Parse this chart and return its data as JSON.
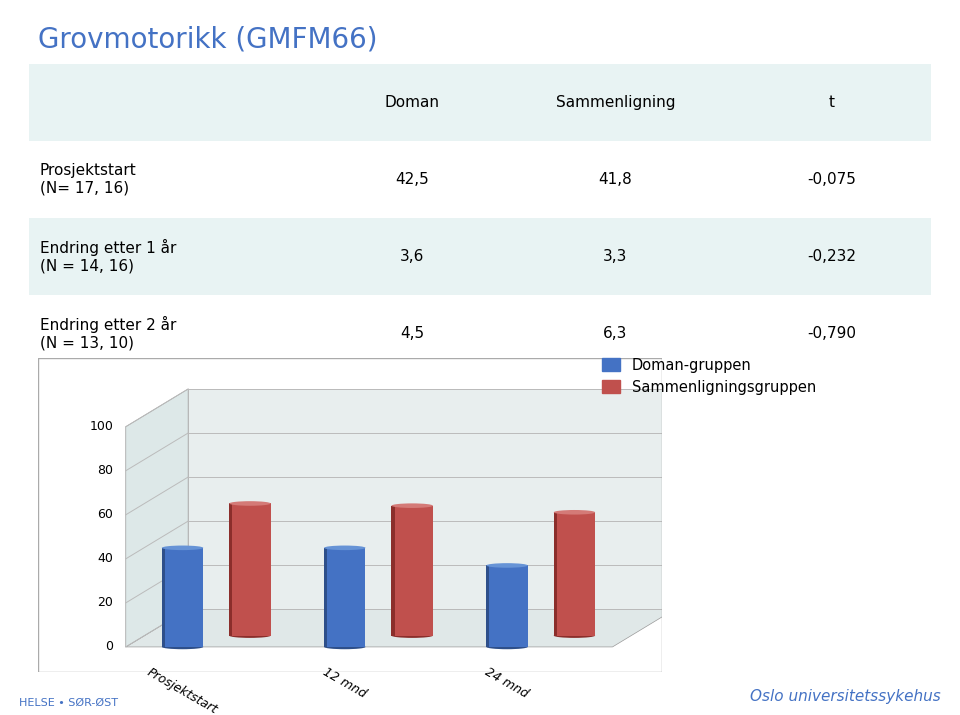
{
  "title": "Grovmotorikk (GMFM66)",
  "title_color": "#4472C4",
  "title_fontsize": 20,
  "table_header": [
    "",
    "Doman",
    "Sammenligning",
    "t"
  ],
  "table_rows": [
    [
      "Prosjektstart\n(N= 17, 16)",
      "42,5",
      "41,8",
      "-0,075"
    ],
    [
      "Endring etter 1 år\n(N = 14, 16)",
      "3,6",
      "3,3",
      "-0,232"
    ],
    [
      "Endring etter 2 år\n(N = 13, 10)",
      "4,5",
      "6,3",
      "-0,790"
    ]
  ],
  "table_bg_alt": "#E8F3F3",
  "table_bg_white": "#FFFFFF",
  "categories": [
    "Prosjektstart",
    "12 mnd",
    "24 mnd"
  ],
  "doman_values": [
    45.0,
    45.0,
    37.0
  ],
  "sammenligningsgruppen_values": [
    60.0,
    59.0,
    56.0
  ],
  "bar_color_doman": "#4472C4",
  "bar_color_doman_dark": "#2E4F8A",
  "bar_color_doman_light": "#6693D6",
  "bar_color_samm": "#C0504D",
  "bar_color_samm_dark": "#8B2E2B",
  "bar_color_samm_light": "#D47A77",
  "ylim": [
    0,
    100
  ],
  "yticks": [
    0,
    20,
    40,
    60,
    80,
    100
  ],
  "legend_doman": "Doman-gruppen",
  "legend_samm": "Sammenligningsgruppen",
  "footer_left": "HELSE • SØR-ØST",
  "footer_right": "Oslo universitetssykehus",
  "footer_color": "#4472C4",
  "chart_border_color": "#AAAAAA",
  "grid_color": "#CCCCCC",
  "floor_color": "#E8E8E8",
  "wall_color": "#F0F0F0"
}
